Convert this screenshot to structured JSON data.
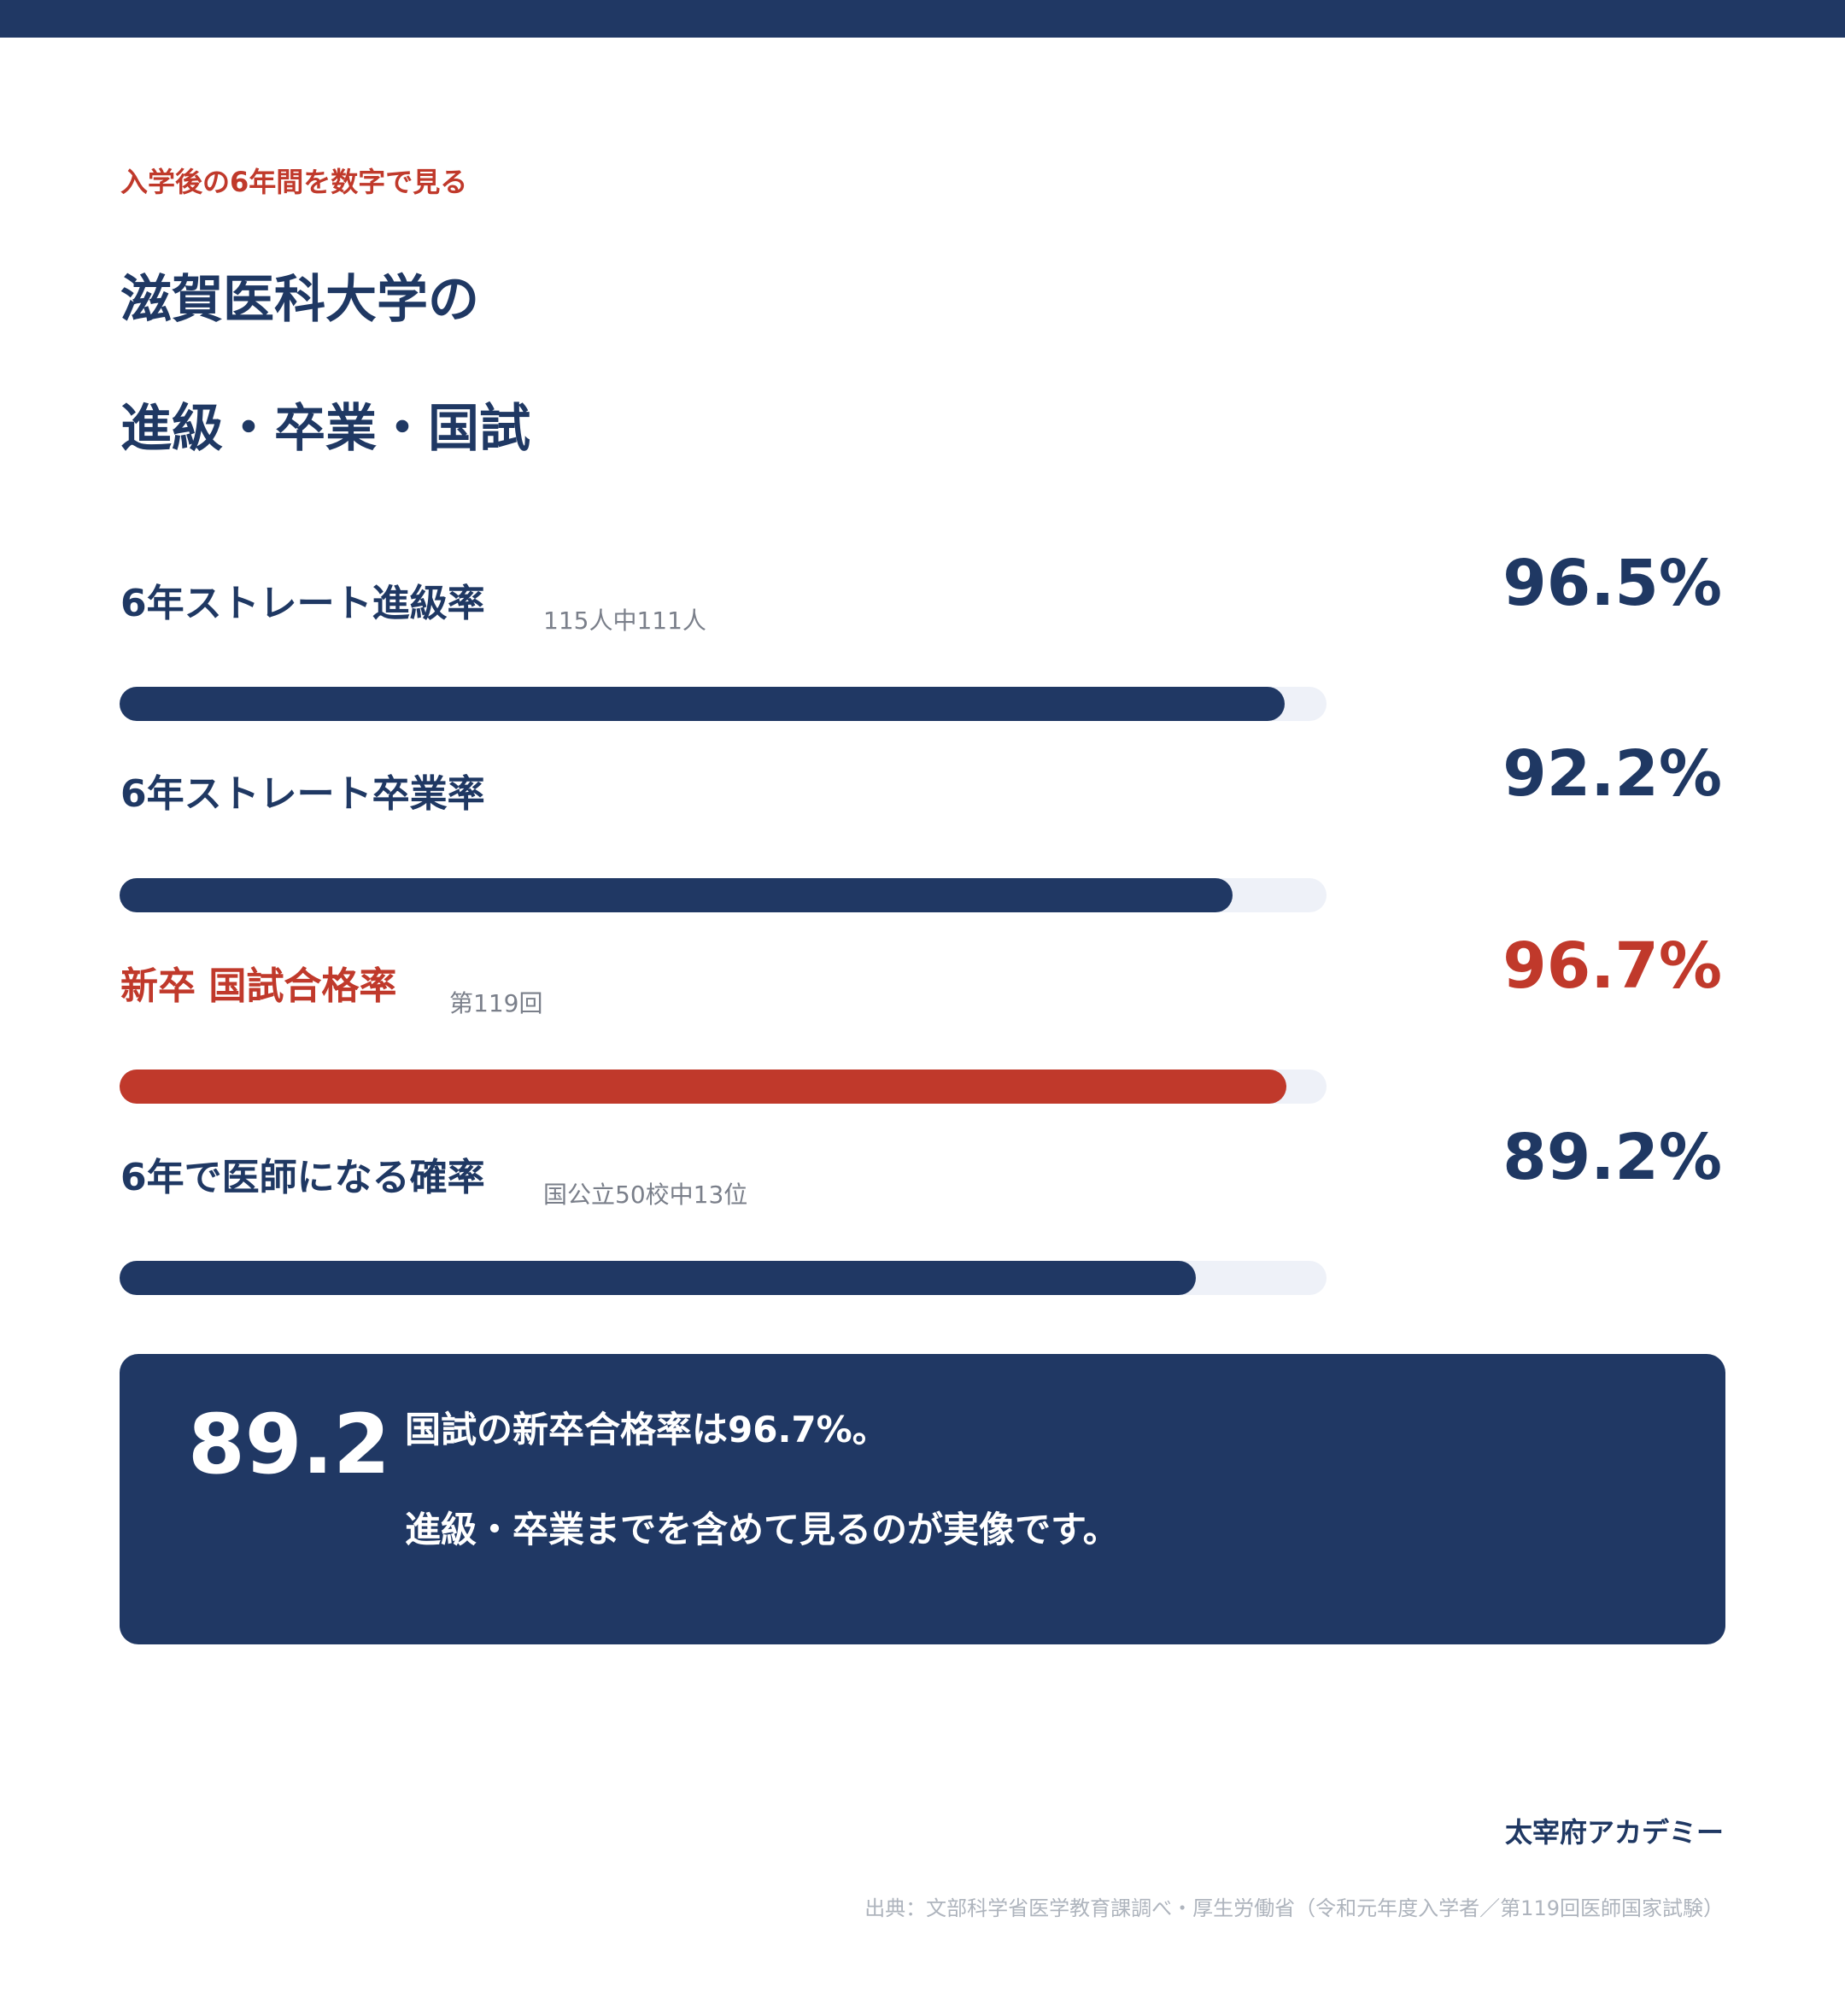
{
  "header": {
    "eyebrow": "入学後の6年間を数字で見る",
    "title_line1": "滋賀医科大学の",
    "title_line2": "進級・卒業・国試"
  },
  "colors": {
    "navy": "#203864",
    "red": "#c0392b",
    "track": "#eef1f8"
  },
  "chart_data": {
    "type": "bar",
    "categories": [
      "6年ストレート進級率",
      "6年ストレート卒業率",
      "新卒 国試合格率",
      "6年で医師になる確率"
    ],
    "values": [
      96.5,
      92.2,
      96.7,
      89.2
    ],
    "value_labels": [
      "96.5%",
      "92.2%",
      "96.7%",
      "89.2%"
    ],
    "notes": [
      "115人中111人",
      "",
      "第119回",
      "国公立50校中13位"
    ],
    "highlight": [
      false,
      false,
      true,
      false
    ],
    "ylim": [
      0,
      100
    ]
  },
  "summary": {
    "number": "89.2",
    "line1": "国試の新卒合格率は96.7%。",
    "line2": "進級・卒業までを含めて見るのが実像です。"
  },
  "footer": {
    "brand": "太宰府アカデミー",
    "source": "出典：文部科学省医学教育課調べ・厚生労働省（令和元年度入学者／第119回医師国家試験）"
  }
}
